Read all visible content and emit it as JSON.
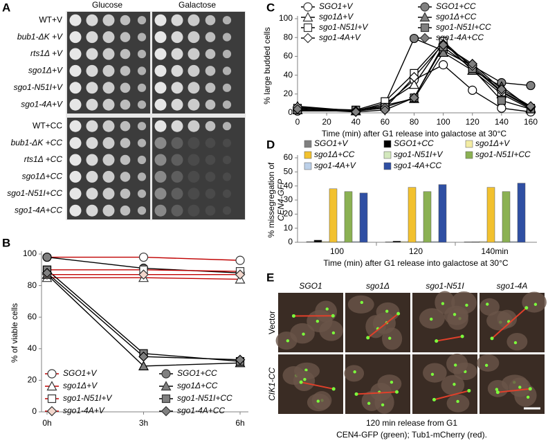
{
  "panel_labels": [
    "A",
    "B",
    "C",
    "D",
    "E"
  ],
  "spot_assay": {
    "columns": [
      "Glucose",
      "Galactose"
    ],
    "rows": [
      "WT+V",
      "bub1-ΔK +V",
      "rts1Δ +V",
      "sgo1Δ+V",
      "sgo1-N51I+V",
      "sgo1-4A+V",
      "WT+CC",
      "bub1-ΔK +CC",
      "rts1Δ +CC",
      "sgo1Δ+CC",
      "sgo1-N51I+CC",
      "sgo1-4A+CC"
    ]
  },
  "chart_data": [
    {
      "type": "line",
      "y_label": "% of viable cells",
      "categories": [
        "0h",
        "3h",
        "6h"
      ],
      "ylim": [
        0,
        100
      ],
      "yticks": [
        0,
        20,
        40,
        60,
        80,
        100
      ],
      "series": [
        {
          "name": "SGO1+V",
          "color": "#c00000",
          "marker": "circle",
          "marker_fill": "#ffffff",
          "values": [
            98,
            98,
            96
          ]
        },
        {
          "name": "SGO1+CC",
          "color": "#000000",
          "marker": "circle",
          "marker_fill": "#808080",
          "values": [
            98,
            91,
            88
          ]
        },
        {
          "name": "sgo1Δ+V",
          "color": "#c00000",
          "marker": "triangle",
          "marker_fill": "#ffffff",
          "values": [
            85,
            85,
            84
          ]
        },
        {
          "name": "sgo1Δ+CC",
          "color": "#000000",
          "marker": "triangle",
          "marker_fill": "#808080",
          "values": [
            87,
            29,
            31
          ]
        },
        {
          "name": "sgo1-N51I+V",
          "color": "#c00000",
          "marker": "square",
          "marker_fill": "#ffffff",
          "values": [
            90,
            90,
            89
          ]
        },
        {
          "name": "sgo1-N51I+CC",
          "color": "#000000",
          "marker": "square",
          "marker_fill": "#808080",
          "values": [
            90,
            37,
            32
          ]
        },
        {
          "name": "sgo1-4A+V",
          "color": "#c00000",
          "marker": "diamond",
          "marker_fill": "#f2d6cc",
          "values": [
            87,
            87,
            87
          ]
        },
        {
          "name": "sgo1-4A+CC",
          "color": "#000000",
          "marker": "diamond",
          "marker_fill": "#808080",
          "values": [
            88,
            35,
            33
          ]
        }
      ]
    },
    {
      "type": "line",
      "y_label": "% large budded cells",
      "x_label": "Time (min) after G1 release into galactose at 30°C",
      "x": [
        0,
        40,
        60,
        80,
        100,
        120,
        140,
        160
      ],
      "xlim": [
        0,
        160
      ],
      "xticks": [
        0,
        20,
        40,
        60,
        80,
        100,
        120,
        140,
        160
      ],
      "ylim": [
        0,
        100
      ],
      "yticks": [
        0,
        20,
        40,
        60,
        80,
        100
      ],
      "series": [
        {
          "name": "SGO1+V",
          "color": "#000000",
          "marker": "circle",
          "marker_fill": "#ffffff",
          "values": [
            2,
            2,
            8,
            35,
            51,
            24,
            5,
            1
          ]
        },
        {
          "name": "SGO1+CC",
          "color": "#000000",
          "marker": "circle",
          "marker_fill": "#808080",
          "values": [
            5,
            2,
            10,
            79,
            66,
            50,
            32,
            29
          ]
        },
        {
          "name": "sgo1Δ+V",
          "color": "#000000",
          "marker": "triangle",
          "marker_fill": "#ffffff",
          "values": [
            3,
            2,
            10,
            30,
            75,
            45,
            20,
            4
          ]
        },
        {
          "name": "sgo1Δ+CC",
          "color": "#000000",
          "marker": "triangle",
          "marker_fill": "#808080",
          "values": [
            7,
            2,
            8,
            15,
            64,
            45,
            28,
            5
          ]
        },
        {
          "name": "sgo1-N51I+V",
          "color": "#000000",
          "marker": "square",
          "marker_fill": "#ffffff",
          "values": [
            5,
            3,
            12,
            42,
            76,
            48,
            22,
            5
          ]
        },
        {
          "name": "sgo1-N51I+CC",
          "color": "#000000",
          "marker": "square",
          "marker_fill": "#808080",
          "values": [
            3,
            3,
            6,
            16,
            70,
            47,
            13,
            4
          ]
        },
        {
          "name": "sgo1-4A+V",
          "color": "#000000",
          "marker": "diamond",
          "marker_fill": "#ffffff",
          "values": [
            6,
            2,
            5,
            38,
            73,
            50,
            23,
            6
          ]
        },
        {
          "name": "sgo1-4A+CC",
          "color": "#000000",
          "marker": "diamond",
          "marker_fill": "#808080",
          "values": [
            4,
            1,
            3,
            16,
            72,
            52,
            25,
            7
          ]
        }
      ]
    },
    {
      "type": "bar",
      "y_label": [
        "% missegregation of",
        "CEN4-GFP"
      ],
      "x_label": "Time (min) after G1 release into galactose at 30°C",
      "categories": [
        "100",
        "120",
        "140min"
      ],
      "ylim": [
        0,
        60
      ],
      "yticks": [
        0,
        10,
        20,
        30,
        40,
        50,
        60
      ],
      "series": [
        {
          "name": "SGO1+V",
          "color": "#808080",
          "values": [
            0.5,
            0.3,
            0.3
          ]
        },
        {
          "name": "SGO1+CC",
          "color": "#000000",
          "values": [
            1.5,
            0.8,
            0.3
          ]
        },
        {
          "name": "sgo1Δ+V",
          "color": "#f3eca3",
          "values": [
            0.5,
            0.5,
            0.5
          ]
        },
        {
          "name": "sgo1Δ+CC",
          "color": "#f2c12e",
          "values": [
            38,
            39,
            39
          ]
        },
        {
          "name": "sgo1-N51I+V",
          "color": "#d3e8bd",
          "values": [
            0.5,
            0.5,
            0.5
          ]
        },
        {
          "name": "sgo1-N51I+CC",
          "color": "#8bb153",
          "values": [
            36,
            36,
            36
          ]
        },
        {
          "name": "sgo1-4A+V",
          "color": "#bcd0e8",
          "values": [
            0.5,
            0.5,
            0.5
          ]
        },
        {
          "name": "sgo1-4A+CC",
          "color": "#2f4fa3",
          "values": [
            35,
            41,
            42
          ]
        }
      ]
    }
  ],
  "micrographs": {
    "columns": [
      "SGO1",
      "sgo1Δ",
      "sgo1-N51I",
      "sgo1-4A"
    ],
    "rows": [
      "Vector",
      "CIK1-CC"
    ],
    "caption": [
      "120 min release from G1",
      "CEN4-GFP (green); Tub1-mCherry (red)."
    ]
  }
}
